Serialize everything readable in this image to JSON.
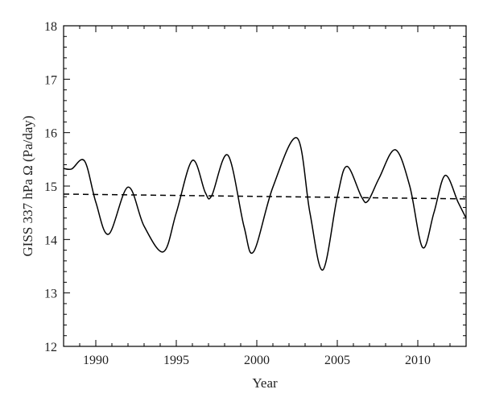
{
  "chart_data": {
    "type": "line",
    "title": "",
    "xlabel": "Year",
    "ylabel": "GISS 337 hPa Ω (Pa/day)",
    "xlim": [
      1988,
      2013
    ],
    "ylim": [
      12,
      18
    ],
    "xticks": [
      1990,
      1995,
      2000,
      2005,
      2010
    ],
    "yticks": [
      12,
      13,
      14,
      15,
      16,
      17,
      18
    ],
    "grid": false,
    "legend": "none",
    "series": [
      {
        "style": "solid",
        "color": "#000000",
        "x": [
          1988.0,
          1988.5,
          1989.3,
          1990.0,
          1990.8,
          1992.0,
          1993.0,
          1994.2,
          1995.0,
          1996.0,
          1996.8,
          1997.2,
          1998.2,
          1999.2,
          1999.8,
          2001.0,
          2002.5,
          2003.3,
          2004.1,
          2005.0,
          2005.6,
          2006.5,
          2006.9,
          2007.6,
          2008.6,
          2009.5,
          2010.3,
          2011.0,
          2011.7,
          2012.5,
          2013.0
        ],
        "y": [
          15.33,
          15.32,
          15.47,
          14.7,
          14.1,
          14.98,
          14.25,
          13.77,
          14.5,
          15.48,
          14.88,
          14.82,
          15.58,
          14.25,
          13.77,
          14.98,
          15.9,
          14.5,
          13.43,
          14.8,
          15.37,
          14.8,
          14.72,
          15.15,
          15.68,
          15.0,
          13.85,
          14.5,
          15.2,
          14.7,
          14.4
        ]
      },
      {
        "style": "dashed",
        "color": "#000000",
        "x": [
          1988.0,
          2013.0
        ],
        "y": [
          14.85,
          14.76
        ]
      }
    ]
  }
}
